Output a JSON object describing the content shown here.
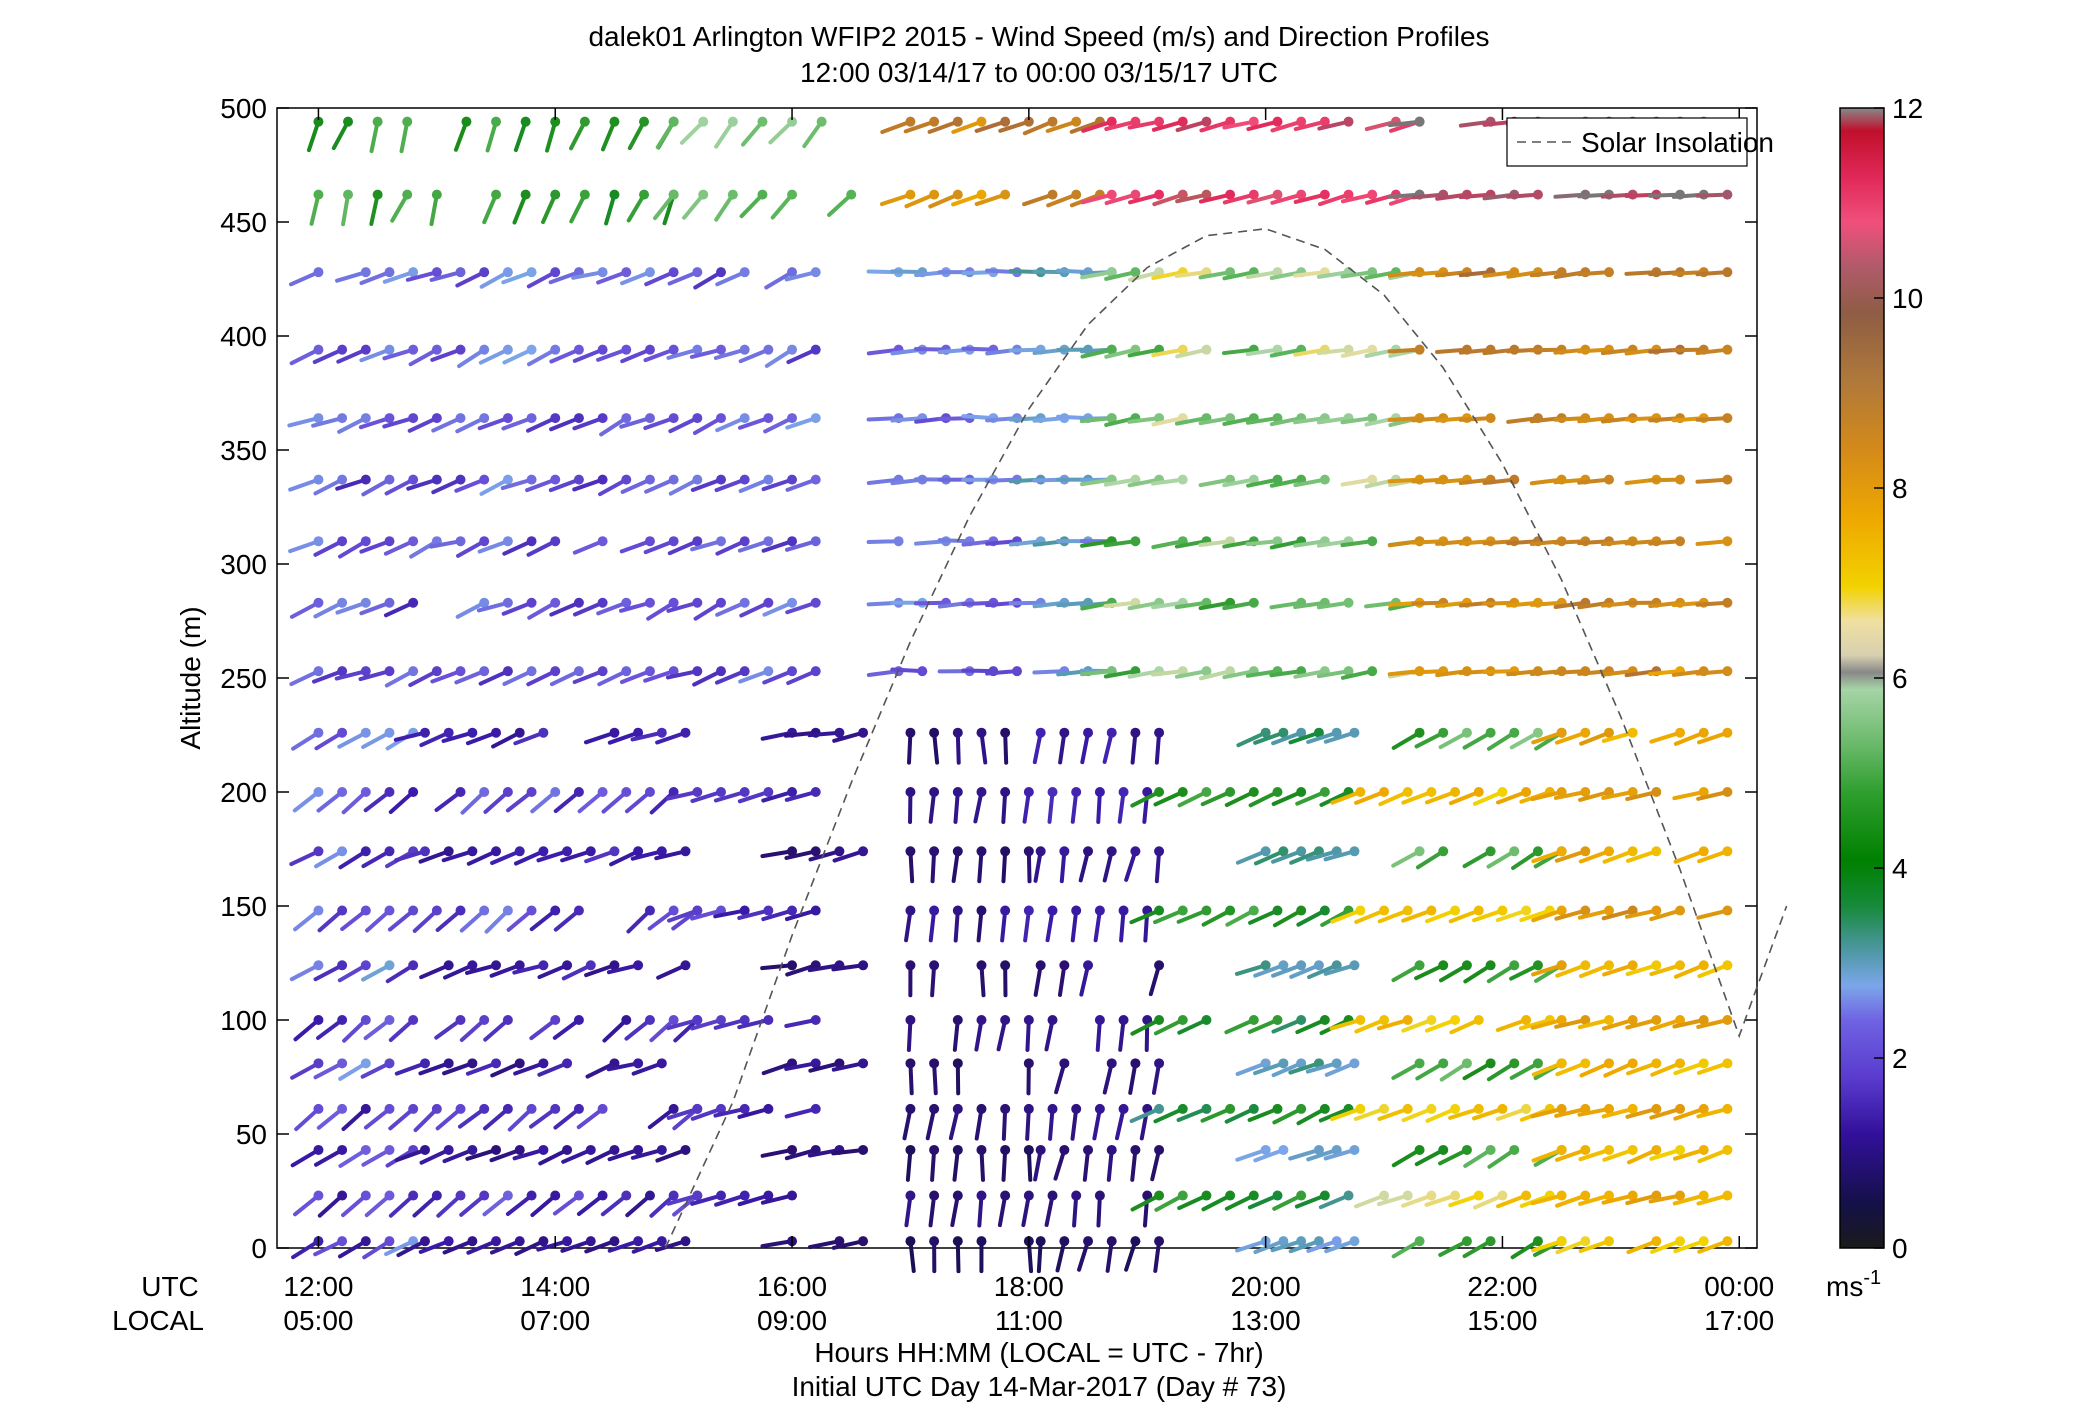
{
  "chart_data": {
    "type": "wind_barb_profile",
    "title": "dalek01 Arlington WFIP2 2015 - Wind Speed (m/s) and Direction Profiles",
    "subtitle": "12:00 03/14/17 to 00:00 03/15/17  UTC",
    "ylabel": "Altitude (m)",
    "xlabel_line1": "Hours HH:MM  (LOCAL = UTC - 7hr)",
    "xlabel_line2": "Initial UTC Day 14-Mar-2017 (Day # 73)",
    "utc_row_label": "UTC",
    "local_row_label": "LOCAL",
    "x_unit": "hours UTC since 12:00 03/14/17",
    "xlim": [
      -0.35,
      12.15
    ],
    "ylim": [
      0,
      500
    ],
    "y_ticks": [
      0,
      50,
      100,
      150,
      200,
      250,
      300,
      350,
      400,
      450,
      500
    ],
    "y_tick_labels": [
      "0",
      "50",
      "100",
      "150",
      "200",
      "250",
      "300",
      "350",
      "400",
      "450",
      "500"
    ],
    "x_ticks": [
      0,
      2,
      4,
      6,
      8,
      10,
      12
    ],
    "x_tick_labels_utc": [
      "12:00",
      "14:00",
      "16:00",
      "18:00",
      "20:00",
      "22:00",
      "00:00"
    ],
    "x_tick_labels_local": [
      "05:00",
      "07:00",
      "09:00",
      "11:00",
      "13:00",
      "15:00",
      "17:00"
    ],
    "grid": false,
    "legend": {
      "entries": [
        "Solar Insolation"
      ],
      "placement": "top-right",
      "line_style": "dashed",
      "line_color": "#555555"
    },
    "colorbar": {
      "min": 0,
      "max": 12,
      "ticks": [
        0,
        2,
        4,
        6,
        8,
        10,
        12
      ],
      "tick_labels": [
        "0",
        "2",
        "4",
        "6",
        "8",
        "10",
        "12"
      ],
      "unit_label": "ms",
      "unit_exponent": "-1"
    },
    "solar_insolation": {
      "x": [
        2.93,
        3.5,
        4.0,
        4.5,
        5.0,
        5.5,
        6.0,
        6.5,
        7.0,
        7.5,
        8.0,
        8.5,
        9.0,
        9.5,
        10.0,
        10.5,
        11.0,
        11.5,
        12.0,
        12.4
      ],
      "y": [
        0,
        64,
        137,
        204,
        266,
        321,
        368,
        405,
        430,
        444,
        447,
        438,
        418,
        386,
        344,
        293,
        233,
        166,
        93,
        150
      ]
    },
    "altitudes": [
      3,
      23,
      43,
      61,
      81,
      100,
      124,
      148,
      174,
      200,
      226,
      253,
      283,
      310,
      337,
      364,
      394,
      428,
      462,
      494
    ],
    "wind_profile": [
      {
        "t0": 0.0,
        "t1": 0.9,
        "step": 0.2,
        "dir": [
          240,
          250,
          230
        ],
        "spd": [
          1.0,
          1.2,
          3.5
        ]
      },
      {
        "t0": 0.9,
        "t1": 3.2,
        "step": 0.2,
        "dir": [
          250,
          270,
          230
        ],
        "spd": [
          0.8,
          1.2,
          1.6
        ]
      },
      {
        "t0": 4.0,
        "t1": 4.7,
        "step": 0.2,
        "dir": [
          260,
          280,
          240
        ],
        "spd": [
          0.5,
          1.0,
          1.4
        ]
      },
      {
        "t0": 5.0,
        "t1": 6.1,
        "step": 0.2,
        "dir": [
          180,
          200,
          160
        ],
        "spd": [
          0.2,
          0.6,
          1.0
        ]
      },
      {
        "t0": 6.1,
        "t1": 7.1,
        "step": 0.2,
        "dir": [
          190,
          210,
          170
        ],
        "spd": [
          0.3,
          0.7,
          1.2
        ]
      },
      {
        "t0": 8.0,
        "t1": 8.8,
        "step": 0.15,
        "dir": [
          250,
          260,
          240
        ],
        "spd": [
          2.0,
          2.5,
          3.0
        ]
      },
      {
        "t0": 9.3,
        "t1": 10.5,
        "step": 0.2,
        "dir": [
          240,
          250,
          230
        ],
        "spd": [
          3.5,
          4.5,
          6.0
        ]
      },
      {
        "t0": 10.5,
        "t1": 12.0,
        "step": 0.2,
        "dir": [
          250,
          260,
          240
        ],
        "spd": [
          6.5,
          7.5,
          8.0
        ]
      },
      {
        "t0": 0.0,
        "t1": 3.2,
        "step": 0.2,
        "dir": [
          230,
          240,
          220
        ],
        "spd": [
          1.0,
          1.6,
          2.4
        ]
      },
      {
        "t0": 3.2,
        "t1": 4.3,
        "step": 0.2,
        "dir": [
          255,
          265,
          245
        ],
        "spd": [
          1.0,
          1.5,
          1.8
        ]
      },
      {
        "t0": 5.0,
        "t1": 7.1,
        "step": 0.2,
        "dir": [
          190,
          200,
          170
        ],
        "spd": [
          0.6,
          1.0,
          1.4
        ]
      },
      {
        "t0": 7.1,
        "t1": 8.8,
        "step": 0.2,
        "dir": [
          245,
          255,
          235
        ],
        "spd": [
          2.5,
          4.0,
          5.5
        ]
      },
      {
        "t0": 8.8,
        "t1": 10.5,
        "step": 0.2,
        "dir": [
          250,
          260,
          240
        ],
        "spd": [
          6.0,
          7.0,
          7.8
        ]
      },
      {
        "t0": 10.5,
        "t1": 12.0,
        "step": 0.2,
        "dir": [
          255,
          265,
          245
        ],
        "spd": [
          7.0,
          8.0,
          8.5
        ]
      }
    ],
    "upper_profile": [
      {
        "t0": 0.0,
        "t1": 4.3,
        "step": 0.2,
        "dir": [
          250,
          270,
          220
        ],
        "spd": [
          1.0,
          1.6,
          2.2
        ]
      },
      {
        "t0": 4.9,
        "t1": 6.7,
        "step": 0.2,
        "dir": [
          270,
          280,
          250
        ],
        "spd": [
          1.2,
          1.8,
          2.4
        ]
      },
      {
        "t0": 6.7,
        "t1": 9.3,
        "step": 0.2,
        "dir": [
          260,
          270,
          250
        ],
        "spd": [
          3.5,
          5.0,
          6.5
        ]
      },
      {
        "t0": 9.3,
        "t1": 12.0,
        "step": 0.2,
        "dir": [
          265,
          275,
          255
        ],
        "spd": [
          7.0,
          8.0,
          9.0
        ]
      }
    ],
    "top_profile": [
      {
        "t0": 0.0,
        "t1": 3.0,
        "step": 0.25,
        "dir": [
          200,
          230,
          170
        ],
        "spd": [
          3.0,
          4.0,
          5.5
        ]
      },
      {
        "t0": 3.0,
        "t1": 4.7,
        "step": 0.25,
        "dir": [
          220,
          240,
          200
        ],
        "spd": [
          4.0,
          5.0,
          6.0
        ]
      },
      {
        "t0": 5.0,
        "t1": 6.7,
        "step": 0.2,
        "dir": [
          250,
          260,
          240
        ],
        "spd": [
          7.0,
          8.0,
          9.5
        ]
      },
      {
        "t0": 6.7,
        "t1": 9.3,
        "step": 0.2,
        "dir": [
          255,
          265,
          245
        ],
        "spd": [
          9.0,
          10.0,
          11.0
        ]
      },
      {
        "t0": 9.3,
        "t1": 12.0,
        "step": 0.2,
        "dir": [
          265,
          275,
          255
        ],
        "spd": [
          10.0,
          11.0,
          12.0
        ]
      }
    ]
  }
}
